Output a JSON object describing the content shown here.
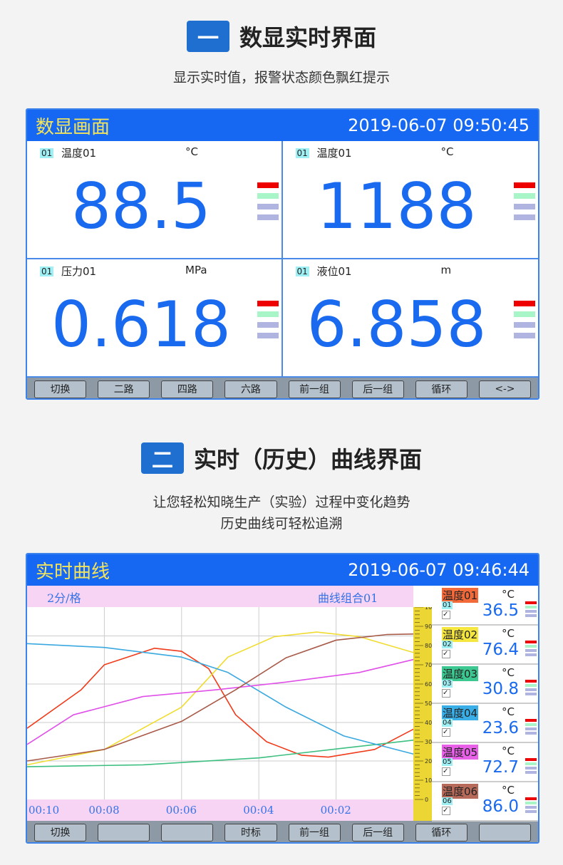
{
  "section1": {
    "badge": "一",
    "title": "数显实时界面",
    "subtitle": "显示实时值，报警状态颜色飘红提示"
  },
  "panel1": {
    "title": "数显画面",
    "datetime": "2019-06-07  09:50:45",
    "cells": [
      {
        "id": "01",
        "name": "温度01",
        "unit": "°C",
        "value": "88.5"
      },
      {
        "id": "01",
        "name": "温度01",
        "unit": "°C",
        "value": "1188"
      },
      {
        "id": "01",
        "name": "压力01",
        "unit": "MPa",
        "value": "0.618"
      },
      {
        "id": "01",
        "name": "液位01",
        "unit": "m",
        "value": "6.858"
      }
    ],
    "buttons": [
      "切换",
      "二路",
      "四路",
      "六路",
      "前一组",
      "后一组",
      "循环",
      "<->"
    ]
  },
  "section2": {
    "badge": "二",
    "title": "实时（历史）曲线界面",
    "subtitle1": "让您轻松知晓生产（实验）过程中变化趋势",
    "subtitle2": "历史曲线可轻松追溯"
  },
  "panel2": {
    "title": "实时曲线",
    "datetime": "2019-06-07  09:46:44",
    "scale": "2分/格",
    "group": "曲线组合01",
    "buttons": [
      "切换",
      "",
      "",
      "时标",
      "前一组",
      "后一组",
      "循环",
      ""
    ]
  },
  "alarm_colors": [
    "#ee0000",
    "#a8f5c8",
    "#b0b4e0",
    "#b0b4e0"
  ],
  "chart_data": {
    "type": "line",
    "x_tick_labels": [
      "00:10",
      "00:08",
      "00:06",
      "00:04",
      "00:02"
    ],
    "x_range_minutes_ago": [
      10,
      0
    ],
    "y_ticks": [
      "100",
      "90",
      "80",
      "70",
      "60",
      "50",
      "40",
      "30",
      "20",
      "10",
      "0"
    ],
    "ylim": [
      0,
      100
    ],
    "grid": true,
    "series": [
      {
        "name": "温度01",
        "color": "#f03a1a",
        "label_bg": "#f26a3a",
        "id": "01",
        "unit": "°C",
        "value": "36.5",
        "points": [
          [
            10,
            37
          ],
          [
            8.6,
            57
          ],
          [
            8,
            70
          ],
          [
            6.7,
            78.6
          ],
          [
            6,
            77
          ],
          [
            5.3,
            68
          ],
          [
            4.6,
            44
          ],
          [
            3.8,
            30
          ],
          [
            2.9,
            23
          ],
          [
            2.2,
            22
          ],
          [
            1,
            26
          ],
          [
            0,
            36.5
          ]
        ]
      },
      {
        "name": "温度02",
        "color": "#f0dc30",
        "label_bg": "#f5e640",
        "id": "02",
        "unit": "°C",
        "value": "76.4",
        "points": [
          [
            10,
            18
          ],
          [
            8,
            26
          ],
          [
            6,
            48
          ],
          [
            4.8,
            74
          ],
          [
            3.6,
            84.6
          ],
          [
            2.5,
            87
          ],
          [
            1.4,
            84.6
          ],
          [
            0,
            76.4
          ]
        ]
      },
      {
        "name": "温度03",
        "color": "#3cbf80",
        "label_bg": "#3cc890",
        "id": "03",
        "unit": "°C",
        "value": "30.8",
        "points": [
          [
            10,
            17
          ],
          [
            7,
            18
          ],
          [
            4,
            21.6
          ],
          [
            1.8,
            26.7
          ],
          [
            0,
            30.8
          ]
        ]
      },
      {
        "name": "温度04",
        "color": "#3aa8e0",
        "label_bg": "#3aaee6",
        "id": "04",
        "unit": "°C",
        "value": "23.6",
        "points": [
          [
            10,
            81
          ],
          [
            8,
            79
          ],
          [
            6,
            74
          ],
          [
            4.8,
            66
          ],
          [
            3.3,
            48
          ],
          [
            1.8,
            33
          ],
          [
            0,
            23.6
          ]
        ]
      },
      {
        "name": "温度05",
        "color": "#e050e8",
        "label_bg": "#e860e8",
        "id": "05",
        "unit": "°C",
        "value": "72.7",
        "points": [
          [
            10,
            28.6
          ],
          [
            8.8,
            44
          ],
          [
            7,
            53.5
          ],
          [
            5.1,
            57
          ],
          [
            3.3,
            61
          ],
          [
            1.4,
            66
          ],
          [
            0,
            72.7
          ]
        ]
      },
      {
        "name": "温度06",
        "color": "#a85a48",
        "label_bg": "#b86a5a",
        "id": "06",
        "unit": "°C",
        "value": "86.0",
        "points": [
          [
            10,
            20
          ],
          [
            8,
            26
          ],
          [
            6,
            40.6
          ],
          [
            4.6,
            57
          ],
          [
            3.3,
            73.6
          ],
          [
            2,
            82.8
          ],
          [
            0.7,
            85.7
          ],
          [
            0,
            86
          ]
        ]
      }
    ]
  }
}
